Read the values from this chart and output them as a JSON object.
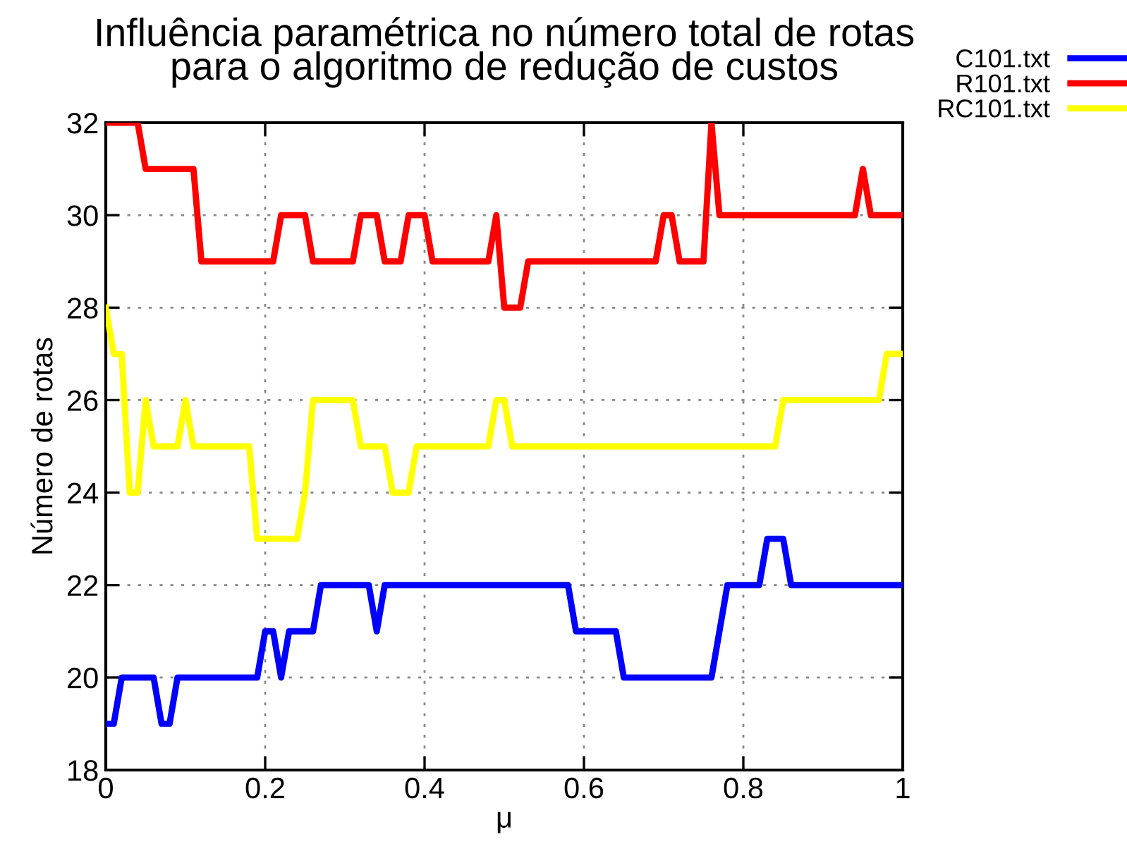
{
  "chart_data": {
    "type": "line",
    "title": "Influência paramétrica no número total de rotas\npara o algoritmo de redução de custos",
    "xlabel": "μ",
    "ylabel": "Número de rotas",
    "xlim": [
      0,
      1
    ],
    "xticks": [
      0,
      0.2,
      0.4,
      0.6,
      0.8,
      1
    ],
    "ylim": [
      18,
      32
    ],
    "yticks": [
      18,
      20,
      22,
      24,
      26,
      28,
      30,
      32
    ],
    "grid": true,
    "legend": "top right",
    "line_style": "solid",
    "marker": "none",
    "series": [
      {
        "name": "C101.txt",
        "color": "#0000ff",
        "x": [
          0,
          0.01,
          0.02,
          0.06,
          0.07,
          0.08,
          0.09,
          0.19,
          0.2,
          0.21,
          0.22,
          0.23,
          0.26,
          0.27,
          0.33,
          0.34,
          0.35,
          0.58,
          0.59,
          0.64,
          0.65,
          0.76,
          0.77,
          0.78,
          0.82,
          0.83,
          0.85,
          0.86,
          1
        ],
        "values": [
          19,
          19,
          20,
          20,
          19,
          19,
          20,
          20,
          21,
          21,
          20,
          21,
          21,
          22,
          22,
          21,
          22,
          22,
          21,
          21,
          20,
          20,
          21,
          22,
          22,
          23,
          23,
          22,
          22
        ]
      },
      {
        "name": "R101.txt",
        "color": "#ff0000",
        "x": [
          0,
          0.04,
          0.05,
          0.11,
          0.12,
          0.21,
          0.22,
          0.25,
          0.26,
          0.31,
          0.32,
          0.34,
          0.35,
          0.37,
          0.38,
          0.4,
          0.41,
          0.48,
          0.49,
          0.5,
          0.52,
          0.53,
          0.69,
          0.7,
          0.71,
          0.72,
          0.75,
          0.76,
          0.77,
          0.94,
          0.95,
          0.96,
          1
        ],
        "values": [
          32,
          32,
          31,
          31,
          29,
          29,
          30,
          30,
          29,
          29,
          30,
          30,
          29,
          29,
          30,
          30,
          29,
          29,
          30,
          28,
          28,
          29,
          29,
          30,
          30,
          29,
          29,
          32,
          30,
          30,
          31,
          30,
          30
        ]
      },
      {
        "name": "RC101.txt",
        "color": "#ffff00",
        "x": [
          0,
          0.01,
          0.02,
          0.03,
          0.04,
          0.05,
          0.06,
          0.09,
          0.1,
          0.11,
          0.18,
          0.19,
          0.24,
          0.25,
          0.26,
          0.31,
          0.32,
          0.35,
          0.36,
          0.38,
          0.39,
          0.48,
          0.49,
          0.5,
          0.51,
          0.84,
          0.85,
          0.97,
          0.98,
          1
        ],
        "values": [
          28,
          27,
          27,
          24,
          24,
          26,
          25,
          25,
          26,
          25,
          25,
          23,
          23,
          24,
          26,
          26,
          25,
          25,
          24,
          24,
          25,
          25,
          26,
          26,
          25,
          25,
          26,
          26,
          27,
          27
        ]
      }
    ]
  }
}
